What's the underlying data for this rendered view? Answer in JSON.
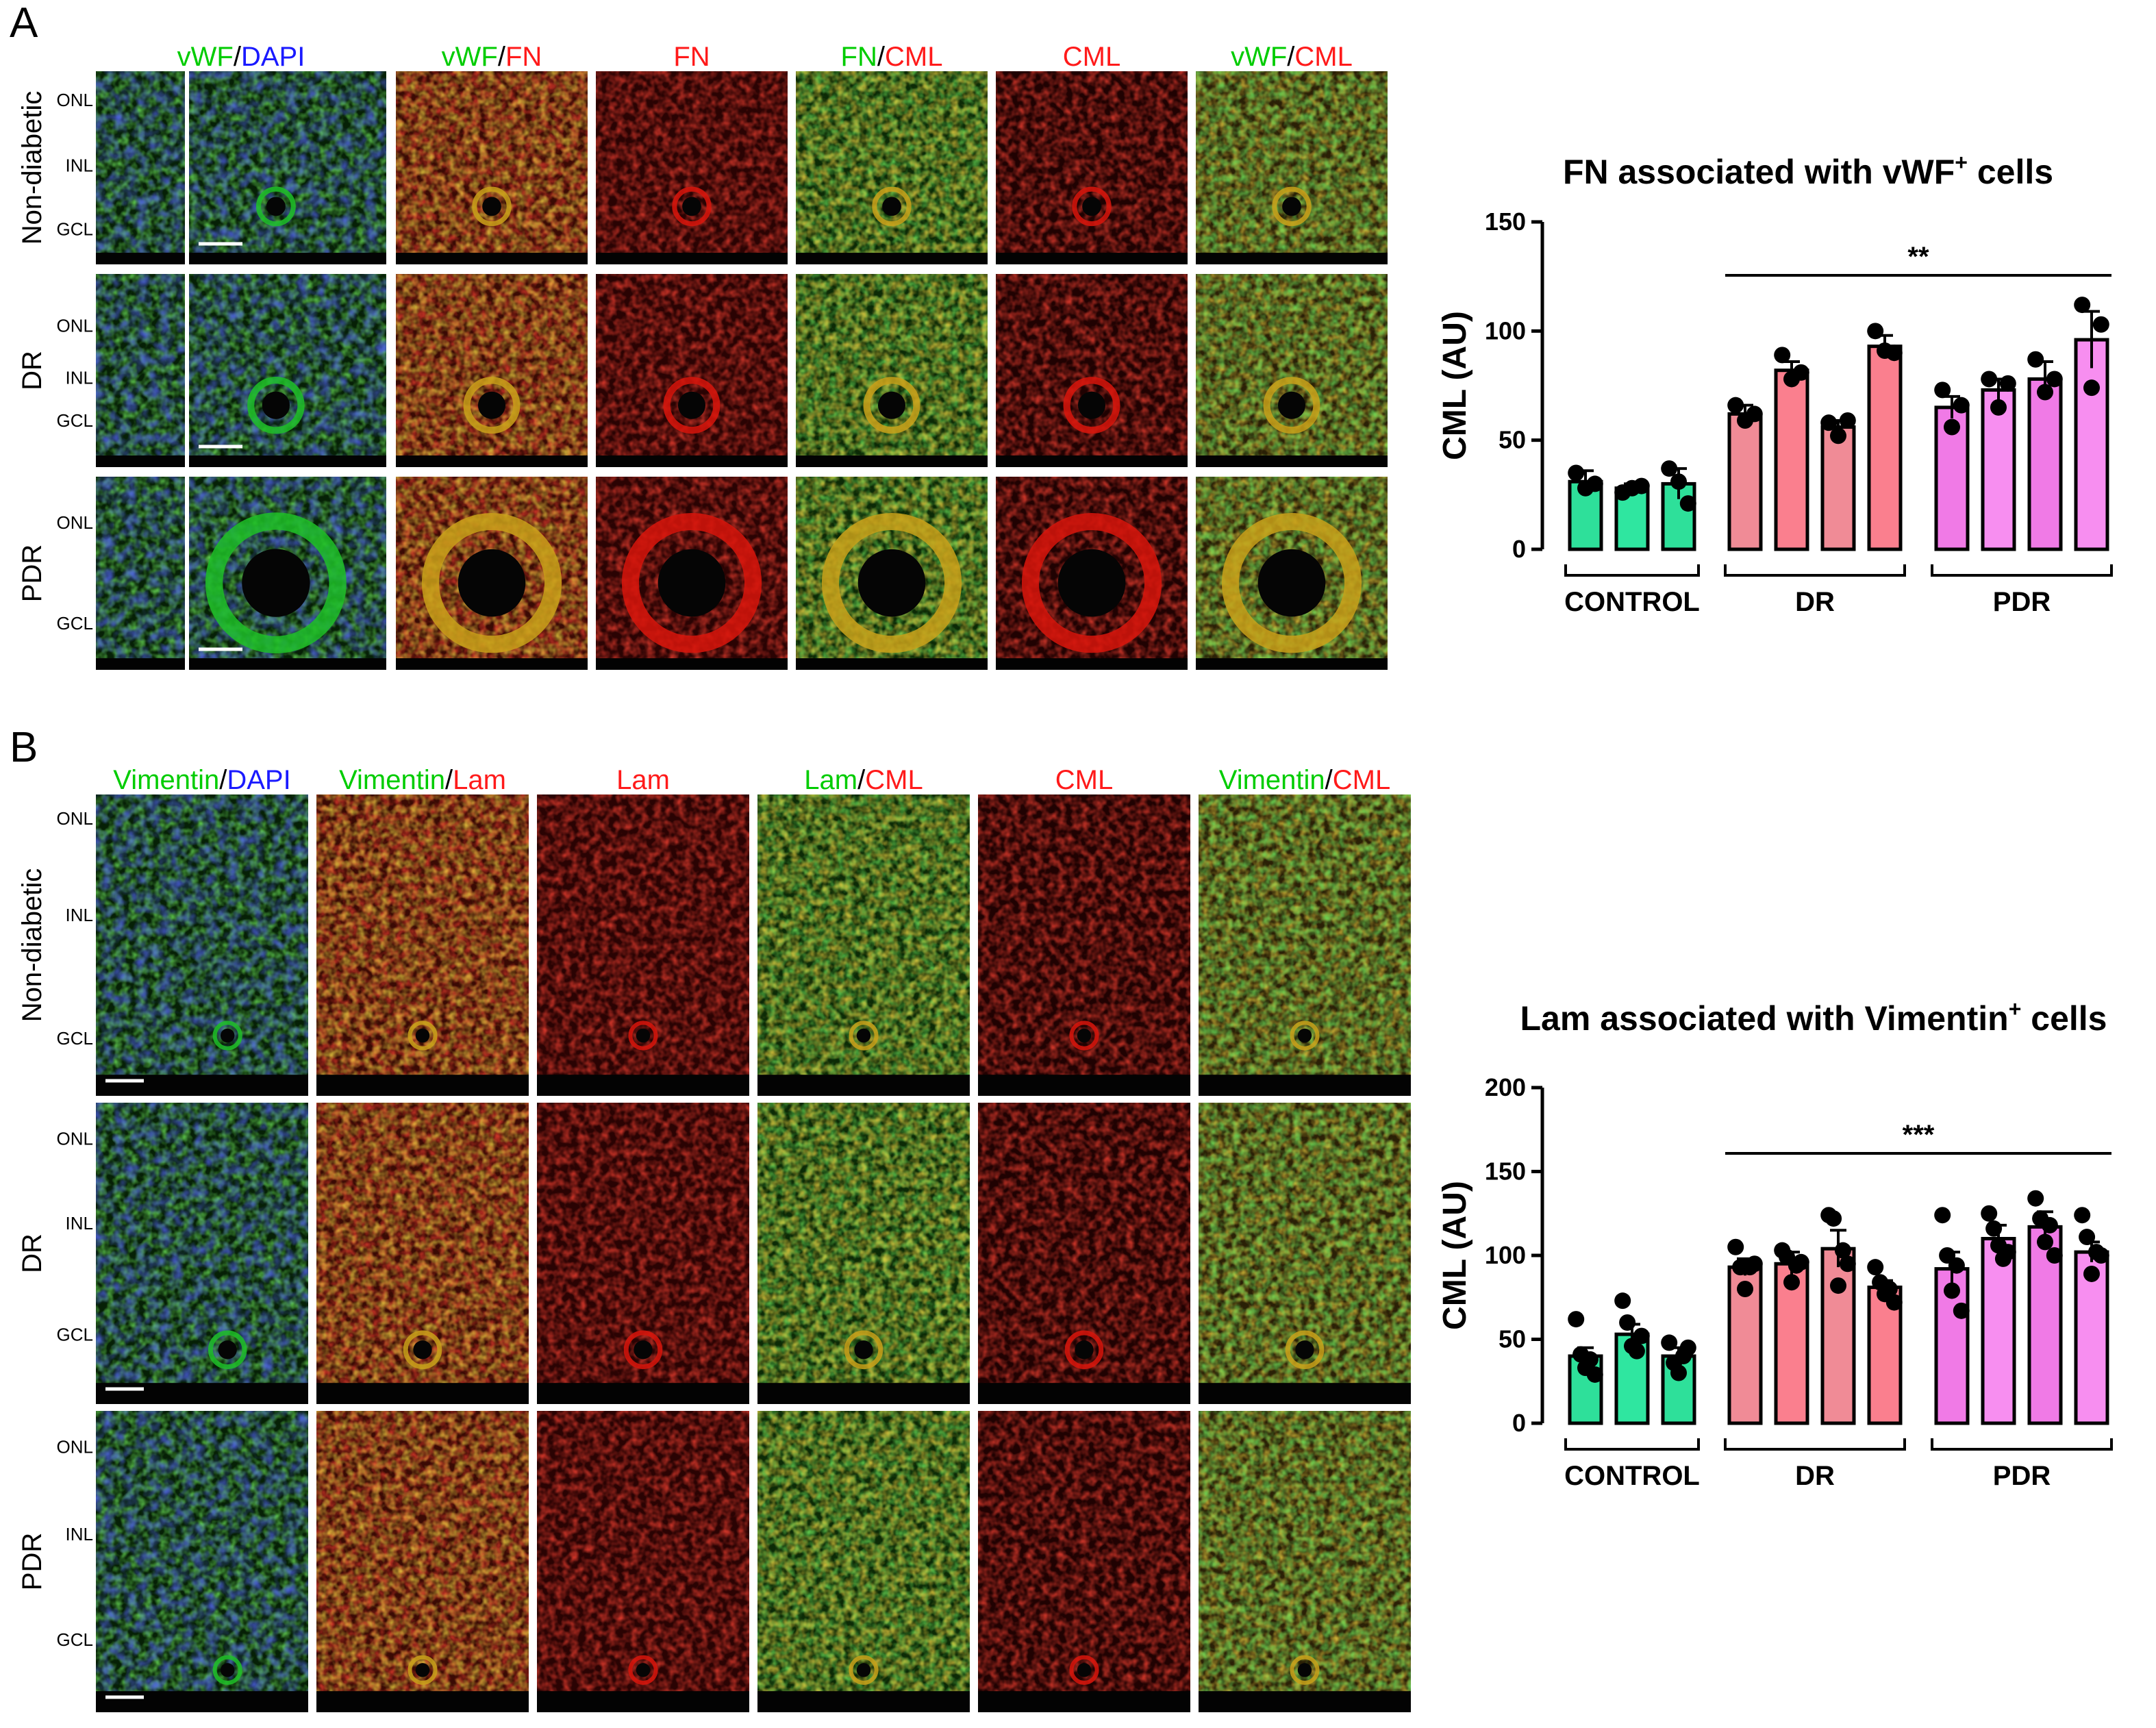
{
  "figure": {
    "panel_A_letter": "A",
    "panel_B_letter": "B",
    "layers": {
      "onl": "ONL",
      "inl": "INL",
      "gcl": "GCL"
    },
    "panel_A": {
      "rows": [
        "Non-diabetic",
        "DR",
        "PDR"
      ],
      "columns": [
        [
          {
            "text": "vWF",
            "color": "#00cc00"
          },
          {
            "text": "/",
            "color": "#000000"
          },
          {
            "text": "DAPI",
            "color": "#1a1aff"
          }
        ],
        [
          {
            "text": "vWF",
            "color": "#00cc00"
          },
          {
            "text": "/",
            "color": "#000000"
          },
          {
            "text": "FN",
            "color": "#ff1a1a"
          }
        ],
        [
          {
            "text": "FN",
            "color": "#ff1a1a"
          }
        ],
        [
          {
            "text": "FN",
            "color": "#00cc00"
          },
          {
            "text": "/",
            "color": "#000000"
          },
          {
            "text": "CML",
            "color": "#ff1a1a"
          }
        ],
        [
          {
            "text": "CML",
            "color": "#ff1a1a"
          }
        ],
        [
          {
            "text": "vWF",
            "color": "#00cc00"
          },
          {
            "text": "/",
            "color": "#000000"
          },
          {
            "text": "CML",
            "color": "#ff1a1a"
          }
        ]
      ]
    },
    "panel_B": {
      "rows": [
        "Non-diabetic",
        "DR",
        "PDR"
      ],
      "columns": [
        [
          {
            "text": "Vimentin",
            "color": "#00cc00"
          },
          {
            "text": "/",
            "color": "#000000"
          },
          {
            "text": "DAPI",
            "color": "#1a1aff"
          }
        ],
        [
          {
            "text": "Vimentin",
            "color": "#00cc00"
          },
          {
            "text": "/",
            "color": "#000000"
          },
          {
            "text": "Lam",
            "color": "#ff1a1a"
          }
        ],
        [
          {
            "text": "Lam",
            "color": "#ff1a1a"
          }
        ],
        [
          {
            "text": "Lam",
            "color": "#00cc00"
          },
          {
            "text": "/",
            "color": "#000000"
          },
          {
            "text": "CML",
            "color": "#ff1a1a"
          }
        ],
        [
          {
            "text": "CML",
            "color": "#ff1a1a"
          }
        ],
        [
          {
            "text": "Vimentin",
            "color": "#00cc00"
          },
          {
            "text": "/",
            "color": "#000000"
          },
          {
            "text": "CML",
            "color": "#ff1a1a"
          }
        ]
      ]
    }
  },
  "colors": {
    "control_a": "#2ee09a",
    "control_b": "#2fe6a0",
    "dr_a": "#f08b96",
    "dr_b": "#fa7f8e",
    "pdr_a": "#f07ae6",
    "pdr_b": "#f78ef0",
    "green_channel": "#1fbf28",
    "red_channel": "#d8150c",
    "blue_channel": "#1024d8",
    "yellow_merge": "#c9a11a"
  },
  "chart_data": [
    {
      "type": "bar",
      "title": "FN associated with vWF",
      "title_superscript": "+",
      "title_suffix": " cells",
      "ylabel": "CML (AU)",
      "ylim": [
        0,
        150
      ],
      "yticks": [
        "0",
        "50",
        "100",
        "150"
      ],
      "groups": [
        {
          "name": "CONTROL",
          "bars": 3
        },
        {
          "name": "DR",
          "bars": 4
        },
        {
          "name": "PDR",
          "bars": 4
        }
      ],
      "values": [
        31,
        28,
        30,
        62,
        82,
        56,
        93,
        65,
        73,
        78,
        96
      ],
      "errors": [
        5,
        2,
        7,
        4,
        4,
        3,
        5,
        5,
        5,
        8,
        13
      ],
      "points": [
        [
          35,
          28,
          30
        ],
        [
          26,
          28,
          29
        ],
        [
          37,
          31,
          21
        ],
        [
          66,
          59,
          62
        ],
        [
          89,
          78,
          81
        ],
        [
          58,
          52,
          59
        ],
        [
          100,
          91,
          90
        ],
        [
          73,
          56,
          66
        ],
        [
          78,
          65,
          76
        ],
        [
          87,
          72,
          78
        ],
        [
          112,
          74,
          103
        ]
      ],
      "significance": "**"
    },
    {
      "type": "bar",
      "title": "Lam associated with Vimentin",
      "title_superscript": "+",
      "title_suffix": " cells",
      "ylabel": "CML (AU)",
      "ylim": [
        0,
        200
      ],
      "yticks": [
        "0",
        "50",
        "100",
        "150",
        "200"
      ],
      "groups": [
        {
          "name": "CONTROL",
          "bars": 3
        },
        {
          "name": "DR",
          "bars": 4
        },
        {
          "name": "PDR",
          "bars": 4
        }
      ],
      "values": [
        40,
        53,
        40,
        93,
        95,
        104,
        81,
        92,
        110,
        117,
        102
      ],
      "errors": [
        5,
        6,
        5,
        5,
        7,
        11,
        4,
        10,
        8,
        9,
        6
      ],
      "points": [
        [
          62,
          41,
          33,
          38,
          29
        ],
        [
          73,
          60,
          46,
          43,
          52
        ],
        [
          48,
          36,
          30,
          40,
          45
        ],
        [
          105,
          93,
          80,
          93,
          95
        ],
        [
          103,
          99,
          84,
          94,
          96
        ],
        [
          124,
          122,
          82,
          103,
          95
        ],
        [
          93,
          84,
          77,
          80,
          72
        ],
        [
          124,
          100,
          79,
          94,
          67
        ],
        [
          125,
          116,
          106,
          98,
          102
        ],
        [
          134,
          122,
          108,
          118,
          100
        ],
        [
          124,
          111,
          89,
          102,
          100
        ]
      ],
      "significance": "***"
    }
  ]
}
